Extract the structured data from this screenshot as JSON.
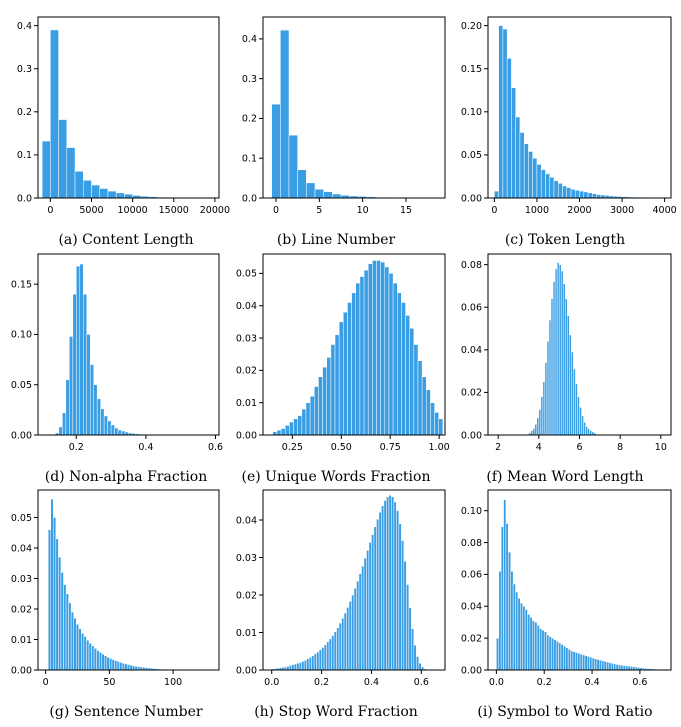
{
  "chart_data": [
    {
      "type": "bar",
      "caption": "(a) Content Length",
      "bin_edges": [
        -1000,
        0,
        1000,
        2000,
        3000,
        4000,
        5000,
        6000,
        7000,
        8000,
        9000,
        10000,
        11000,
        12000,
        13000,
        14000,
        15000,
        16000,
        17000,
        18000,
        19000,
        20000
      ],
      "values": [
        0.132,
        0.39,
        0.182,
        0.117,
        0.062,
        0.041,
        0.03,
        0.022,
        0.016,
        0.012,
        0.009,
        0.006,
        0.004,
        0.003,
        0.002,
        0.0015,
        0.001,
        0.0008,
        0.0006,
        0.0004,
        0.0003
      ],
      "xlim": [
        -1500,
        20500
      ],
      "ylim": [
        0,
        0.42
      ],
      "xticks": [
        0,
        5000,
        10000,
        15000,
        20000
      ],
      "xtick_labels": [
        "0",
        "5000",
        "10000",
        "15000",
        "20000"
      ],
      "yticks": [
        0,
        0.1,
        0.2,
        0.3,
        0.4
      ],
      "ytick_labels": [
        "0.0",
        "0.1",
        "0.2",
        "0.3",
        "0.4"
      ]
    },
    {
      "type": "bar",
      "caption": "(b) Line Number",
      "bin_edges": [
        -0.5,
        0.5,
        1.5,
        2.5,
        3.5,
        4.5,
        5.5,
        6.5,
        7.5,
        8.5,
        9.5,
        10.5,
        11.5,
        12.5,
        13.5,
        14.5,
        15.5,
        16.5,
        17.5,
        18.5
      ],
      "values": [
        0.236,
        0.422,
        0.158,
        0.071,
        0.038,
        0.022,
        0.016,
        0.01,
        0.007,
        0.005,
        0.004,
        0.003,
        0.002,
        0.0015,
        0.001,
        0.0008,
        0.0006,
        0.0004,
        0.0003
      ],
      "xlim": [
        -1.5,
        19.5
      ],
      "ylim": [
        0,
        0.455
      ],
      "xticks": [
        0,
        5,
        10,
        15
      ],
      "xtick_labels": [
        "0",
        "5",
        "10",
        "15"
      ],
      "yticks": [
        0,
        0.1,
        0.2,
        0.3,
        0.4
      ],
      "ytick_labels": [
        "0.0",
        "0.1",
        "0.2",
        "0.3",
        "0.4"
      ]
    },
    {
      "type": "bar",
      "caption": "(c) Token Length",
      "bin_edges": [
        0,
        100,
        200,
        300,
        400,
        500,
        600,
        700,
        800,
        900,
        1000,
        1100,
        1200,
        1300,
        1400,
        1500,
        1600,
        1700,
        1800,
        1900,
        2000,
        2100,
        2200,
        2300,
        2400,
        2500,
        2600,
        2700,
        2800,
        2900,
        3000,
        3100,
        3200,
        3300,
        3400,
        3500,
        3600,
        3700,
        3800,
        3900,
        4000
      ],
      "values": [
        0.008,
        0.2,
        0.196,
        0.162,
        0.128,
        0.094,
        0.076,
        0.063,
        0.054,
        0.046,
        0.039,
        0.033,
        0.028,
        0.024,
        0.02,
        0.017,
        0.014,
        0.012,
        0.01,
        0.009,
        0.008,
        0.007,
        0.006,
        0.005,
        0.004,
        0.0035,
        0.003,
        0.0025,
        0.002,
        0.0018,
        0.0015,
        0.0013,
        0.0011,
        0.001,
        0.0008,
        0.0007,
        0.0006,
        0.0005,
        0.0004,
        0.0003
      ],
      "xlim": [
        -150,
        4150
      ],
      "ylim": [
        0,
        0.21
      ],
      "xticks": [
        0,
        1000,
        2000,
        3000,
        4000
      ],
      "xtick_labels": [
        "0",
        "1000",
        "2000",
        "3000",
        "4000"
      ],
      "yticks": [
        0,
        0.05,
        0.1,
        0.15,
        0.2
      ],
      "ytick_labels": [
        "0.00",
        "0.05",
        "0.10",
        "0.15",
        "0.20"
      ]
    },
    {
      "type": "bar",
      "caption": "(d) Non-alpha Fraction",
      "bin_edges": [
        0.14,
        0.15,
        0.16,
        0.17,
        0.18,
        0.19,
        0.2,
        0.21,
        0.22,
        0.23,
        0.24,
        0.25,
        0.26,
        0.27,
        0.28,
        0.29,
        0.3,
        0.31,
        0.32,
        0.33,
        0.34,
        0.35,
        0.36,
        0.37,
        0.38,
        0.39,
        0.4,
        0.41,
        0.42,
        0.43,
        0.44,
        0.45
      ],
      "values": [
        0.002,
        0.008,
        0.022,
        0.055,
        0.098,
        0.14,
        0.168,
        0.17,
        0.14,
        0.1,
        0.07,
        0.05,
        0.036,
        0.026,
        0.019,
        0.014,
        0.01,
        0.007,
        0.005,
        0.004,
        0.003,
        0.002,
        0.0016,
        0.0012,
        0.0009,
        0.0007,
        0.0005,
        0.0004,
        0.0003,
        0.0002,
        0.0001
      ],
      "xlim": [
        0.09,
        0.61
      ],
      "ylim": [
        0,
        0.18
      ],
      "xticks": [
        0.2,
        0.4,
        0.6
      ],
      "xtick_labels": [
        "0.2",
        "0.4",
        "0.6"
      ],
      "yticks": [
        0,
        0.05,
        0.1,
        0.15
      ],
      "ytick_labels": [
        "0.00",
        "0.05",
        "0.10",
        "0.15"
      ]
    },
    {
      "type": "bar",
      "caption": "(e) Unique Words Fraction",
      "x_start": 0.15,
      "bin_width": 0.0212,
      "values": [
        0.001,
        0.0015,
        0.002,
        0.003,
        0.004,
        0.005,
        0.006,
        0.008,
        0.01,
        0.012,
        0.015,
        0.018,
        0.021,
        0.024,
        0.028,
        0.031,
        0.035,
        0.038,
        0.041,
        0.044,
        0.047,
        0.049,
        0.051,
        0.053,
        0.054,
        0.054,
        0.0535,
        0.052,
        0.05,
        0.047,
        0.044,
        0.041,
        0.037,
        0.033,
        0.028,
        0.023,
        0.018,
        0.014,
        0.01,
        0.007,
        0.005
      ],
      "xlim": [
        0.1,
        1.03
      ],
      "ylim": [
        0,
        0.056
      ],
      "xticks": [
        0.25,
        0.5,
        0.75,
        1.0
      ],
      "xtick_labels": [
        "0.25",
        "0.50",
        "0.75",
        "1.00"
      ],
      "yticks": [
        0,
        0.01,
        0.02,
        0.03,
        0.04,
        0.05
      ],
      "ytick_labels": [
        "0.00",
        "0.01",
        "0.02",
        "0.03",
        "0.04",
        "0.05"
      ]
    },
    {
      "type": "bar",
      "caption": "(f) Mean Word Length",
      "x_start": 3.5,
      "bin_width": 0.1,
      "values": [
        0.001,
        0.002,
        0.003,
        0.005,
        0.008,
        0.012,
        0.018,
        0.025,
        0.034,
        0.044,
        0.054,
        0.064,
        0.072,
        0.078,
        0.081,
        0.08,
        0.077,
        0.071,
        0.064,
        0.056,
        0.047,
        0.039,
        0.031,
        0.024,
        0.018,
        0.013,
        0.009,
        0.006,
        0.004,
        0.003,
        0.002,
        0.0015,
        0.001
      ],
      "xlim": [
        1.5,
        10.5
      ],
      "ylim": [
        0,
        0.085
      ],
      "xticks": [
        2,
        4,
        6,
        8,
        10
      ],
      "xtick_labels": [
        "2",
        "4",
        "6",
        "8",
        "10"
      ],
      "yticks": [
        0,
        0.02,
        0.04,
        0.06,
        0.08
      ],
      "ytick_labels": [
        "0.00",
        "0.02",
        "0.04",
        "0.06",
        "0.08"
      ]
    },
    {
      "type": "bar",
      "caption": "(g) Sentence Number",
      "x_start": 2,
      "bin_width": 2,
      "values": [
        0.046,
        0.056,
        0.05,
        0.043,
        0.037,
        0.032,
        0.028,
        0.025,
        0.022,
        0.019,
        0.017,
        0.015,
        0.0135,
        0.012,
        0.011,
        0.0098,
        0.0088,
        0.0079,
        0.0071,
        0.0064,
        0.0058,
        0.0052,
        0.0047,
        0.0042,
        0.0038,
        0.0034,
        0.0031,
        0.0028,
        0.0025,
        0.0022,
        0.002,
        0.0018,
        0.0016,
        0.0014,
        0.0012,
        0.0011,
        0.001,
        0.0009,
        0.0008,
        0.0007,
        0.0006,
        0.0005,
        0.0004,
        0.00035,
        0.0003,
        0.00025,
        0.0002,
        0.00015,
        0.0001,
        0.0001,
        0.0001,
        0.0001,
        0.0001,
        0.0001,
        0.0001,
        0.0001,
        0.0001,
        0.0001,
        0.0001,
        0.0001,
        0.0001,
        0.0001,
        0.0001,
        0.0001,
        0.0001,
        0.0001
      ],
      "xlim": [
        -6,
        136
      ],
      "ylim": [
        0,
        0.059
      ],
      "xticks": [
        0,
        50,
        100
      ],
      "xtick_labels": [
        "0",
        "50",
        "100"
      ],
      "yticks": [
        0,
        0.01,
        0.02,
        0.03,
        0.04,
        0.05
      ],
      "ytick_labels": [
        "0.00",
        "0.01",
        "0.02",
        "0.03",
        "0.04",
        "0.05"
      ]
    },
    {
      "type": "bar",
      "caption": "(h) Stop Word Fraction",
      "x_start": 0.0,
      "bin_width": 0.01,
      "values": [
        0.0003,
        0.0004,
        0.0005,
        0.0006,
        0.0007,
        0.0008,
        0.001,
        0.0012,
        0.0014,
        0.0016,
        0.0018,
        0.002,
        0.0023,
        0.0026,
        0.003,
        0.0034,
        0.0038,
        0.0043,
        0.0048,
        0.0054,
        0.006,
        0.0067,
        0.0075,
        0.0083,
        0.0092,
        0.0102,
        0.0113,
        0.0125,
        0.0138,
        0.0152,
        0.0167,
        0.0183,
        0.02,
        0.0218,
        0.0237,
        0.0257,
        0.0277,
        0.0298,
        0.0319,
        0.034,
        0.0361,
        0.0382,
        0.0402,
        0.0421,
        0.0438,
        0.0452,
        0.0462,
        0.0466,
        0.0462,
        0.0448,
        0.0425,
        0.039,
        0.0345,
        0.029,
        0.0228,
        0.0166,
        0.011,
        0.0066,
        0.0036,
        0.0018,
        0.0008,
        0.0003,
        0.0001
      ],
      "xlim": [
        -0.035,
        0.695
      ],
      "ylim": [
        0,
        0.048
      ],
      "xticks": [
        0,
        0.2,
        0.4,
        0.6
      ],
      "xtick_labels": [
        "0.0",
        "0.2",
        "0.4",
        "0.6"
      ],
      "yticks": [
        0,
        0.01,
        0.02,
        0.03,
        0.04
      ],
      "ytick_labels": [
        "0.00",
        "0.01",
        "0.02",
        "0.03",
        "0.04"
      ]
    },
    {
      "type": "bar",
      "caption": "(i) Symbol to Word Ratio",
      "x_start": 0.0,
      "bin_width": 0.01,
      "values": [
        0.02,
        0.062,
        0.09,
        0.107,
        0.092,
        0.074,
        0.062,
        0.054,
        0.049,
        0.045,
        0.042,
        0.04,
        0.038,
        0.035,
        0.033,
        0.031,
        0.03,
        0.028,
        0.026,
        0.025,
        0.024,
        0.022,
        0.021,
        0.02,
        0.019,
        0.018,
        0.017,
        0.016,
        0.015,
        0.014,
        0.013,
        0.012,
        0.0115,
        0.011,
        0.0105,
        0.01,
        0.0095,
        0.009,
        0.0085,
        0.008,
        0.0075,
        0.007,
        0.0066,
        0.0062,
        0.0058,
        0.0054,
        0.005,
        0.0046,
        0.0042,
        0.0038,
        0.0035,
        0.0032,
        0.003,
        0.0028,
        0.0026,
        0.0024,
        0.0022,
        0.002,
        0.0018,
        0.0016,
        0.0014,
        0.0012,
        0.001,
        0.0009,
        0.0008,
        0.0007,
        0.0006,
        0.0005,
        0.0004,
        0.0003
      ],
      "xlim": [
        -0.035,
        0.73
      ],
      "ylim": [
        0,
        0.113
      ],
      "xticks": [
        0,
        0.2,
        0.4,
        0.6
      ],
      "xtick_labels": [
        "0.0",
        "0.2",
        "0.4",
        "0.6"
      ],
      "yticks": [
        0,
        0.02,
        0.04,
        0.06,
        0.08,
        0.1
      ],
      "ytick_labels": [
        "0.00",
        "0.02",
        "0.04",
        "0.06",
        "0.08",
        "0.10"
      ]
    }
  ],
  "bar_color": "#3a9ee4"
}
